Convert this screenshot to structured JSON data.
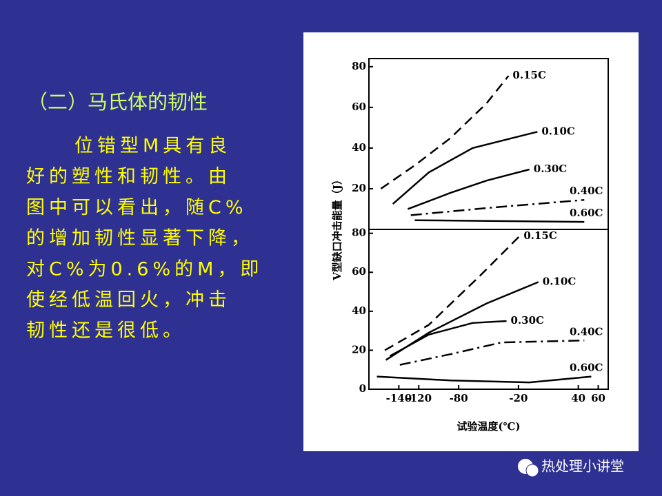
{
  "slide": {
    "heading": "（二）马氏体的韧性",
    "body_lines": [
      "位错型M具有良",
      "好的塑性和韧性。由",
      "图中可以看出，随C%",
      "的增加韧性显著下降，",
      "对C%为0.6%的M，即",
      "使经低温回火，冲击",
      "韧性还是很低。"
    ],
    "watermark": "热处理小讲堂"
  },
  "chart_data": [
    {
      "type": "line",
      "y_label": "V型缺口冲击能量（J）",
      "xlim": [
        -170,
        70
      ],
      "ylim": [
        0,
        84
      ],
      "yticks": [
        20,
        40,
        60,
        80
      ],
      "series": [
        {
          "name": "0.15C",
          "color": "#000000",
          "dash": "dashed",
          "x": [
            -158,
            -124,
            -88,
            -52,
            -30
          ],
          "values": [
            20,
            31.5,
            45,
            62,
            75.5
          ]
        },
        {
          "name": "0.10C",
          "color": "#000000",
          "dash": "solid",
          "x": [
            -146,
            -110,
            -66,
            -1
          ],
          "values": [
            12.5,
            28,
            40,
            48
          ]
        },
        {
          "name": "0.30C",
          "color": "#000000",
          "dash": "solid",
          "x": [
            -131,
            -88,
            -52,
            -9
          ],
          "values": [
            10,
            18,
            24,
            29.5
          ]
        },
        {
          "name": "0.40C",
          "color": "#000000",
          "dash": "dashdot",
          "x": [
            -128,
            -52,
            46
          ],
          "values": [
            7,
            10.5,
            14.5
          ]
        },
        {
          "name": "0.60C",
          "color": "#000000",
          "dash": "solid",
          "x": [
            -124,
            46
          ],
          "values": [
            4.5,
            3.7
          ]
        }
      ]
    },
    {
      "type": "line",
      "x_label": "试验温度(℃)",
      "xlim": [
        -170,
        70
      ],
      "xticks": [
        -140,
        -120,
        -80,
        -20,
        40,
        60
      ],
      "ylim": [
        0,
        82
      ],
      "yticks": [
        0,
        20,
        40,
        60,
        80
      ],
      "series": [
        {
          "name": "0.15C",
          "color": "#000000",
          "dash": "dashed",
          "x": [
            -154,
            -110,
            -59,
            -19
          ],
          "values": [
            20,
            33,
            58,
            78.5
          ]
        },
        {
          "name": "0.10C",
          "color": "#000000",
          "dash": "solid",
          "x": [
            -153,
            -110,
            -52,
            0
          ],
          "values": [
            15,
            29,
            44,
            55
          ]
        },
        {
          "name": "0.30C",
          "color": "#000000",
          "dash": "solid",
          "x": [
            -149,
            -110,
            -66,
            -32
          ],
          "values": [
            17,
            28,
            34,
            35
          ]
        },
        {
          "name": "0.40C",
          "color": "#000000",
          "dash": "dashdot",
          "x": [
            -139,
            -88,
            -37,
            46
          ],
          "values": [
            12.5,
            18,
            24,
            25
          ]
        },
        {
          "name": "0.60C",
          "color": "#000000",
          "dash": "solid",
          "x": [
            -162,
            -88,
            -9,
            53
          ],
          "values": [
            6.5,
            4.5,
            3.5,
            6.5
          ]
        }
      ]
    }
  ]
}
